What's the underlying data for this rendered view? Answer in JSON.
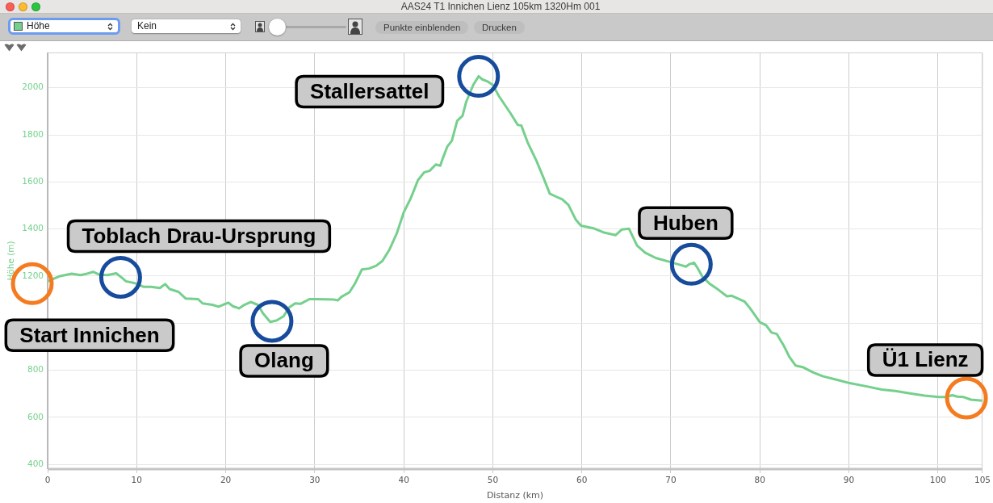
{
  "chart_data": {
    "type": "line",
    "title": "AAS24 T1 Innichen Lienz 105km 1320Hm 001",
    "xlabel": "Distanz (km)",
    "ylabel": "Höhe (m)",
    "x": [
      0,
      1.4,
      2.7,
      3.7,
      4.3,
      5.1,
      5.8,
      6.7,
      7.7,
      8.3,
      8.8,
      9.8,
      10.8,
      11.6,
      12.6,
      13.2,
      13.7,
      14.7,
      15.5,
      16.9,
      17.4,
      18.5,
      19.2,
      19.7,
      20.3,
      20.8,
      21.5,
      22.1,
      22.8,
      23.6,
      24.2,
      25.0,
      25.7,
      26.5,
      27.1,
      27.8,
      28.4,
      29.4,
      30.2,
      32.2,
      32.6,
      33.0,
      33.9,
      34.5,
      35.3,
      36.1,
      36.9,
      37.6,
      38.4,
      39.2,
      40.0,
      40.8,
      41.6,
      42.3,
      42.9,
      43.6,
      44.1,
      44.4,
      44.9,
      45.4,
      46.0,
      46.6,
      47.0,
      47.8,
      48.4,
      48.8,
      49.4,
      50.0,
      50.7,
      52.0,
      52.8,
      53.2,
      53.9,
      54.9,
      55.7,
      56.4,
      57.2,
      57.8,
      58.5,
      59.3,
      59.9,
      61.4,
      62.4,
      63.8,
      64.5,
      65.3,
      66.2,
      67.1,
      68.3,
      69.8,
      70.9,
      71.7,
      72.1,
      72.6,
      73.0,
      73.6,
      74.4,
      75.3,
      76.3,
      76.8,
      77.6,
      78.3,
      78.9,
      80.0,
      80.7,
      81.3,
      81.9,
      82.7,
      83.3,
      84.0,
      84.9,
      85.9,
      87.1,
      88.6,
      90.1,
      91.9,
      93.7,
      95.2,
      97.0,
      98.5,
      100.1,
      100.8,
      101.6,
      102.2,
      102.9,
      103.7,
      105
    ],
    "series": [
      {
        "color": "#74d08c",
        "values": [
          1178,
          1200,
          1210,
          1204,
          1209,
          1218,
          1206,
          1204,
          1212,
          1194,
          1178,
          1170,
          1154,
          1154,
          1149,
          1166,
          1145,
          1133,
          1105,
          1102,
          1084,
          1078,
          1070,
          1078,
          1087,
          1072,
          1063,
          1078,
          1090,
          1078,
          1041,
          1005,
          1011,
          1029,
          1066,
          1084,
          1082,
          1102,
          1102,
          1100,
          1097,
          1112,
          1131,
          1167,
          1228,
          1232,
          1244,
          1264,
          1313,
          1380,
          1471,
          1532,
          1608,
          1641,
          1647,
          1674,
          1669,
          1702,
          1751,
          1775,
          1860,
          1881,
          1939,
          2012,
          2049,
          2036,
          2027,
          2012,
          1964,
          1891,
          1842,
          1840,
          1769,
          1690,
          1617,
          1550,
          1536,
          1526,
          1502,
          1441,
          1414,
          1402,
          1386,
          1374,
          1398,
          1401,
          1330,
          1300,
          1277,
          1261,
          1249,
          1240,
          1251,
          1257,
          1234,
          1194,
          1166,
          1143,
          1114,
          1117,
          1103,
          1091,
          1063,
          1004,
          991,
          960,
          954,
          903,
          857,
          820,
          812,
          792,
          774,
          760,
          745,
          732,
          718,
          712,
          701,
          692,
          686,
          686,
          694,
          688,
          686,
          675,
          671
        ]
      }
    ],
    "xlim": [
      0,
      105
    ],
    "xticks": [
      0,
      10,
      20,
      30,
      40,
      50,
      60,
      70,
      80,
      90,
      100,
      105
    ],
    "ylim": [
      380,
      2150
    ],
    "yticks": [
      400,
      600,
      800,
      {
        "value": 1000,
        "label": null
      },
      1200,
      1400,
      1600,
      1800,
      2000
    ],
    "grid": true,
    "annotations": [
      {
        "text": "Start Innichen",
        "x": 0,
        "y": 1178
      },
      {
        "text": "Toblach Drau-Ursprung",
        "x": 8.2,
        "y": 1195
      },
      {
        "text": "Olang",
        "x": 25.2,
        "y": 1008
      },
      {
        "text": "Stallersattel",
        "x": 48.4,
        "y": 2049
      },
      {
        "text": "Huben",
        "x": 72.3,
        "y": 1250
      },
      {
        "text": "Ü1 Lienz",
        "x": 103.2,
        "y": 682
      },
      "Höhe",
      "Kein",
      "Punkte einblenden",
      "Drucken"
    ]
  }
}
